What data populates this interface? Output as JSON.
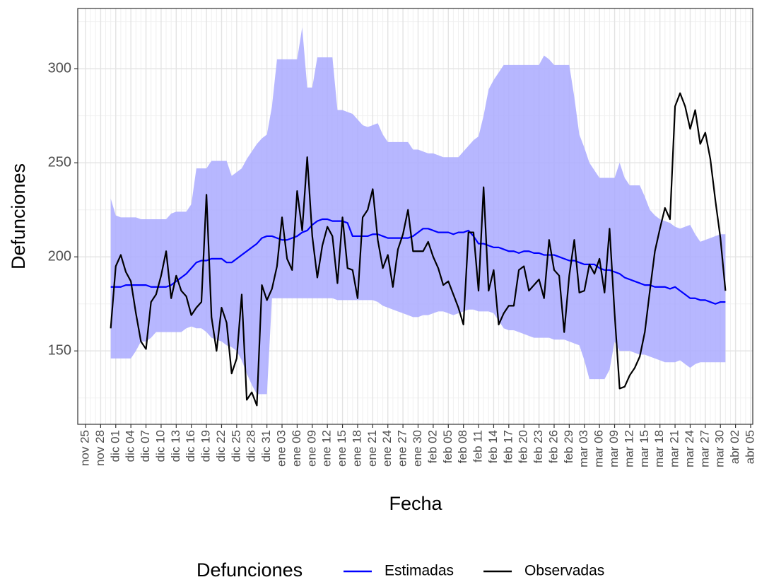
{
  "chart_data": {
    "type": "line",
    "x_label": "Fecha",
    "y_label": "Defunciones",
    "legend_title": "Defunciones",
    "legend_position": "bottom",
    "grid": true,
    "categories": [
      "nov 25",
      null,
      null,
      "nov 28",
      null,
      null,
      "dic 01",
      null,
      null,
      "dic 04",
      null,
      null,
      "dic 07",
      null,
      null,
      "dic 10",
      null,
      null,
      "dic 13",
      null,
      null,
      "dic 16",
      null,
      null,
      "dic 19",
      null,
      null,
      "dic 22",
      null,
      null,
      "dic 25",
      null,
      null,
      "dic 28",
      null,
      null,
      "dic 31",
      null,
      null,
      "ene 03",
      null,
      null,
      "ene 06",
      null,
      null,
      "ene 09",
      null,
      null,
      "ene 12",
      null,
      null,
      "ene 15",
      null,
      null,
      "ene 18",
      null,
      null,
      "ene 21",
      null,
      null,
      "ene 24",
      null,
      null,
      "ene 27",
      null,
      null,
      "ene 30",
      null,
      null,
      "feb 02",
      null,
      null,
      "feb 05",
      null,
      null,
      "feb 08",
      null,
      null,
      "feb 11",
      null,
      null,
      "feb 14",
      null,
      null,
      "feb 17",
      null,
      null,
      "feb 20",
      null,
      null,
      "feb 23",
      null,
      null,
      "feb 26",
      null,
      null,
      "feb 29",
      null,
      null,
      "mar 03",
      null,
      null,
      "mar 06",
      null,
      null,
      "mar 09",
      null,
      null,
      "mar 12",
      null,
      null,
      "mar 15",
      null,
      null,
      "mar 18",
      null,
      null,
      "mar 21",
      null,
      null,
      "mar 24",
      null,
      null,
      "mar 27",
      null,
      null,
      "mar 30",
      null,
      null,
      "abr 02",
      null,
      null,
      "abr 05"
    ],
    "ylim": [
      111,
      332
    ],
    "yticks": [
      150,
      200,
      250,
      300
    ],
    "yminor": [
      125,
      175,
      225,
      275,
      325
    ],
    "series": [
      {
        "name": "Estimadas",
        "color": "#0000ff",
        "band_color": "#aaaaff",
        "values": [
          null,
          null,
          null,
          null,
          null,
          184,
          184,
          184,
          185,
          185,
          185,
          185,
          185,
          184,
          184,
          184,
          184,
          185,
          187,
          189,
          191,
          194,
          197,
          198,
          198,
          199,
          199,
          199,
          197,
          197,
          199,
          201,
          203,
          205,
          207,
          210,
          211,
          211,
          210,
          209,
          209,
          210,
          211,
          213,
          214,
          217,
          219,
          220,
          220,
          219,
          219,
          219,
          218,
          211,
          211,
          211,
          211,
          212,
          212,
          211,
          210,
          210,
          210,
          210,
          210,
          211,
          213,
          215,
          215,
          214,
          213,
          213,
          213,
          212,
          213,
          213,
          214,
          211,
          207,
          207,
          206,
          205,
          205,
          204,
          203,
          203,
          202,
          203,
          203,
          202,
          202,
          201,
          201,
          201,
          200,
          199,
          198,
          198,
          197,
          196,
          196,
          196,
          194,
          193,
          193,
          192,
          191,
          189,
          188,
          187,
          186,
          185,
          185,
          184,
          184,
          184,
          183,
          184,
          182,
          180,
          178,
          178,
          177,
          177,
          176,
          175,
          176,
          176,
          null,
          null,
          null,
          null,
          null
        ],
        "upper": [
          null,
          null,
          null,
          null,
          null,
          231,
          222,
          221,
          221,
          221,
          221,
          220,
          220,
          220,
          220,
          220,
          220,
          223,
          224,
          224,
          224,
          228,
          247,
          247,
          247,
          251,
          251,
          251,
          251,
          243,
          245,
          247,
          252,
          256,
          260,
          263,
          265,
          280,
          305,
          305,
          305,
          305,
          305,
          322,
          290,
          290,
          306,
          306,
          306,
          306,
          278,
          278,
          277,
          276,
          273,
          270,
          269,
          270,
          271,
          265,
          261,
          261,
          261,
          261,
          261,
          257,
          257,
          256,
          255,
          255,
          254,
          253,
          253,
          253,
          253,
          256,
          259,
          262,
          264,
          275,
          289,
          294,
          298,
          302,
          302,
          302,
          302,
          302,
          302,
          302,
          302,
          307,
          305,
          302,
          302,
          302,
          302,
          285,
          265,
          258,
          250,
          246,
          242,
          242,
          242,
          242,
          250,
          242,
          238,
          238,
          238,
          232,
          225,
          222,
          220,
          219,
          218,
          216,
          215,
          216,
          217,
          212,
          208,
          209,
          210,
          211,
          212,
          212,
          null,
          null,
          null,
          null,
          null
        ],
        "lower": [
          null,
          null,
          null,
          null,
          null,
          146,
          146,
          146,
          146,
          146,
          150,
          155,
          155,
          157,
          160,
          160,
          160,
          160,
          160,
          160,
          162,
          163,
          162,
          162,
          160,
          157,
          156,
          155,
          153,
          152,
          150,
          145,
          138,
          132,
          127,
          127,
          127,
          178,
          178,
          178,
          178,
          178,
          178,
          178,
          178,
          178,
          178,
          178,
          178,
          178,
          177,
          177,
          177,
          177,
          177,
          177,
          177,
          177,
          176,
          174,
          173,
          172,
          171,
          170,
          169,
          168,
          168,
          169,
          169,
          170,
          171,
          171,
          170,
          169,
          170,
          171,
          172,
          172,
          171,
          171,
          171,
          170,
          166,
          162,
          161,
          161,
          160,
          159,
          158,
          157,
          157,
          157,
          157,
          156,
          156,
          156,
          155,
          154,
          153,
          145,
          135,
          135,
          135,
          135,
          140,
          155,
          150,
          150,
          150,
          149,
          148,
          148,
          147,
          146,
          145,
          144,
          144,
          144,
          145,
          143,
          141,
          143,
          144,
          144,
          144,
          144,
          144,
          144,
          null,
          null,
          null,
          null,
          null
        ]
      },
      {
        "name": "Observadas",
        "color": "#000000",
        "values": [
          null,
          null,
          null,
          null,
          null,
          162,
          195,
          201,
          192,
          187,
          170,
          155,
          151,
          176,
          180,
          190,
          203,
          178,
          190,
          182,
          179,
          169,
          173,
          176,
          233,
          168,
          150,
          173,
          165,
          138,
          146,
          180,
          124,
          128,
          121,
          185,
          177,
          183,
          195,
          221,
          199,
          193,
          235,
          214,
          253,
          211,
          189,
          206,
          216,
          211,
          186,
          221,
          194,
          193,
          178,
          221,
          225,
          236,
          209,
          194,
          201,
          184,
          204,
          212,
          225,
          203,
          203,
          203,
          208,
          200,
          194,
          185,
          187,
          180,
          173,
          164,
          213,
          213,
          182,
          237,
          182,
          193,
          164,
          170,
          174,
          174,
          193,
          195,
          182,
          185,
          188,
          178,
          209,
          193,
          190,
          160,
          190,
          209,
          181,
          182,
          196,
          191,
          199,
          181,
          215,
          170,
          130,
          131,
          137,
          141,
          147,
          160,
          182,
          203,
          215,
          226,
          220,
          280,
          287,
          280,
          268,
          278,
          260,
          266,
          252,
          230,
          210,
          182,
          null,
          null,
          null,
          null,
          null
        ]
      }
    ]
  }
}
